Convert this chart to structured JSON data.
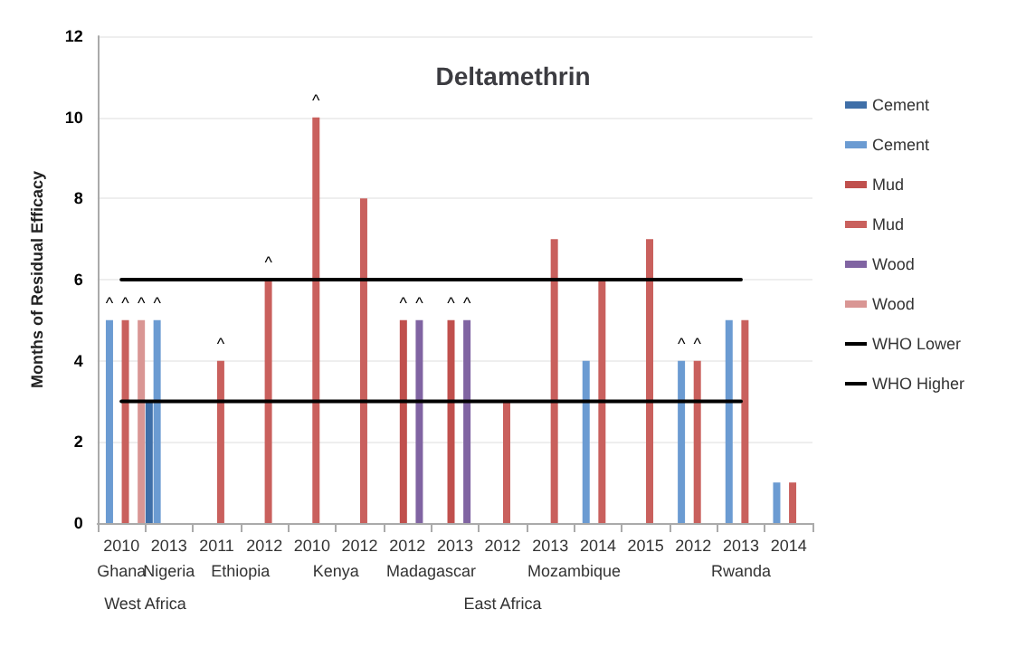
{
  "chart_data": {
    "type": "bar",
    "title": "Deltamethrin",
    "ylabel": "Months of Residual Efficacy",
    "categories": [
      "2010",
      "2013",
      "2011",
      "2012",
      "2010",
      "2012",
      "2012",
      "2013",
      "2012",
      "2013",
      "2014",
      "2015",
      "2012",
      "2013",
      "2014"
    ],
    "series": [
      {
        "name": "Cement",
        "color": "#3f6fa8",
        "values": [
          null,
          3,
          null,
          null,
          null,
          null,
          null,
          null,
          null,
          null,
          null,
          null,
          null,
          null,
          null
        ]
      },
      {
        "name": "Cement",
        "color": "#6b9bd2",
        "values": [
          5,
          5,
          null,
          null,
          null,
          null,
          null,
          null,
          null,
          null,
          4,
          null,
          4,
          5,
          1
        ],
        "value_labels": [
          "^",
          "^",
          null,
          null,
          null,
          null,
          null,
          null,
          null,
          null,
          null,
          null,
          "^",
          null,
          null
        ]
      },
      {
        "name": "Mud",
        "color": "#c0504d",
        "values": [
          null,
          null,
          null,
          null,
          null,
          null,
          5,
          5,
          null,
          null,
          null,
          null,
          null,
          null,
          null
        ],
        "value_labels": [
          null,
          null,
          null,
          null,
          null,
          null,
          "^",
          "^",
          null,
          null,
          null,
          null,
          null,
          null,
          null
        ]
      },
      {
        "name": "Mud",
        "color": "#c9605d",
        "values": [
          5,
          null,
          4,
          6,
          10,
          8,
          null,
          null,
          3,
          7,
          6,
          7,
          4,
          5,
          1
        ],
        "value_labels": [
          "^",
          null,
          "^",
          "^",
          "^",
          null,
          null,
          null,
          null,
          null,
          null,
          null,
          "^",
          null,
          null
        ]
      },
      {
        "name": "Wood",
        "color": "#8064a2",
        "values": [
          null,
          null,
          null,
          null,
          null,
          null,
          5,
          5,
          null,
          null,
          null,
          null,
          null,
          null,
          null
        ],
        "value_labels": [
          null,
          null,
          null,
          null,
          null,
          null,
          "^",
          "^",
          null,
          null,
          null,
          null,
          null,
          null,
          null
        ]
      },
      {
        "name": "Wood",
        "color": "#d99694",
        "values": [
          5,
          null,
          null,
          null,
          null,
          null,
          null,
          null,
          null,
          null,
          null,
          null,
          null,
          null,
          null
        ],
        "value_labels": [
          "^",
          null,
          null,
          null,
          null,
          null,
          null,
          null,
          null,
          null,
          null,
          null,
          null,
          null,
          null
        ]
      },
      {
        "name": "WHO Lower",
        "type": "line",
        "color": "#000000",
        "values": [
          3,
          3,
          3,
          3,
          3,
          3,
          3,
          3,
          3,
          3,
          3,
          3,
          3,
          3,
          null
        ]
      },
      {
        "name": "WHO Higher",
        "type": "line",
        "color": "#000000",
        "values": [
          6,
          6,
          6,
          6,
          6,
          6,
          6,
          6,
          6,
          6,
          6,
          6,
          6,
          6,
          null
        ]
      }
    ],
    "ylim": [
      0,
      12
    ],
    "yticks": [
      0,
      2,
      4,
      6,
      8,
      10,
      12
    ],
    "grid": "y",
    "legend": "right",
    "marker": "none",
    "line_style": "solid",
    "annotations": [
      "Ghana",
      "Nigeria",
      "Ethiopia",
      "Kenya",
      "Madagascar",
      "Mozambique",
      "Rwanda",
      "West Africa",
      "East Africa"
    ]
  }
}
